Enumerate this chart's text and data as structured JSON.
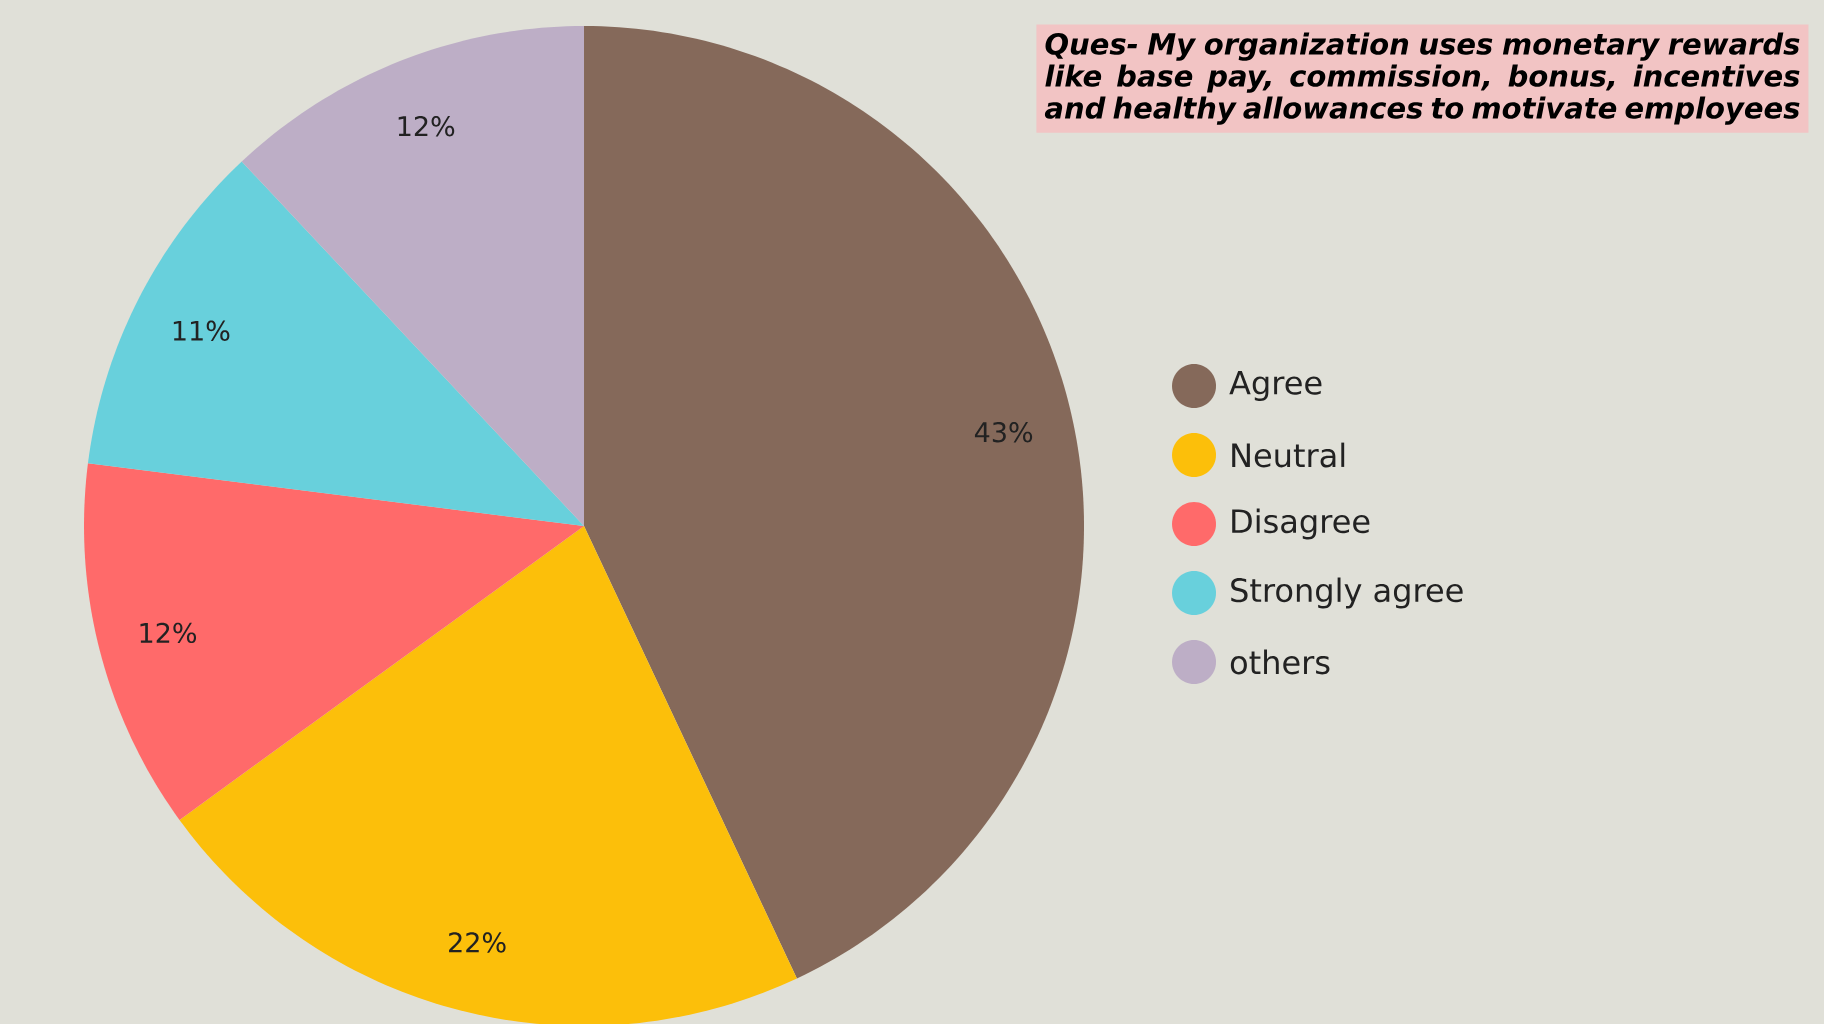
{
  "chart_data": {
    "type": "pie",
    "title": "Ques- My organization uses monetary rewards like base pay, commission, bonus, incentives and healthy allowances to motivate employees",
    "categories": [
      "Agree",
      "Neutral",
      "Disagree",
      "Strongly agree",
      "others"
    ],
    "values": [
      43,
      22,
      12,
      11,
      12
    ],
    "value_labels": [
      "43%",
      "22%",
      "12%",
      "11%",
      "12%"
    ],
    "colors": [
      "#85695a",
      "#fcbf0a",
      "#ff6a6a",
      "#68d0dc",
      "#bdaec6"
    ],
    "legend": "right"
  }
}
